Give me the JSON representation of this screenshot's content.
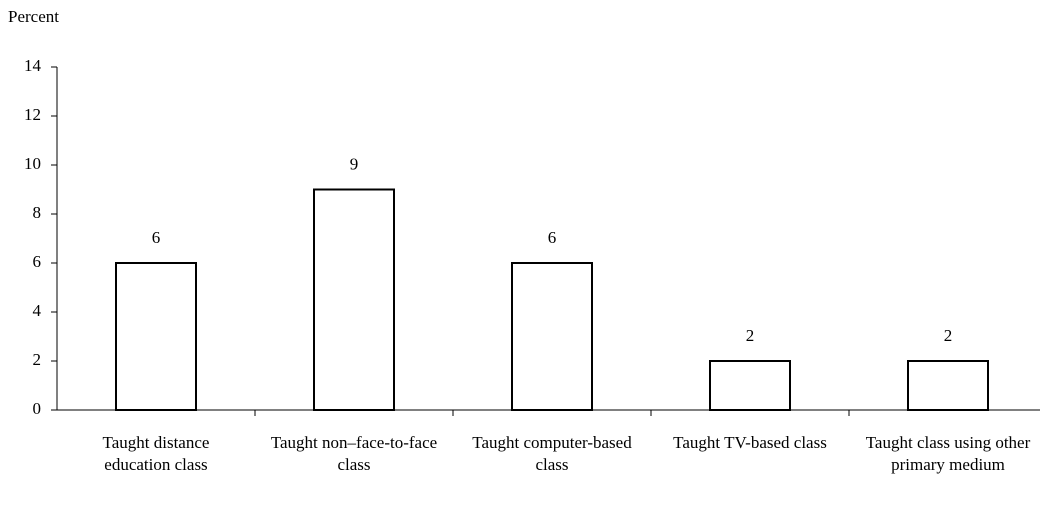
{
  "chart_data": {
    "type": "bar",
    "y_label": "Percent",
    "categories": [
      "Taught distance education class",
      "Taught non–face-to-face class",
      "Taught computer-based class",
      "Taught TV-based class",
      "Taught class using other primary medium"
    ],
    "values": [
      6,
      9,
      6,
      2,
      2
    ],
    "color": "#ffffff",
    "edge_color": "#000000",
    "ylim": [
      0,
      14
    ],
    "yticks": [
      0,
      2,
      4,
      6,
      8,
      10,
      12,
      14
    ],
    "grid": false,
    "data_labels": true
  }
}
